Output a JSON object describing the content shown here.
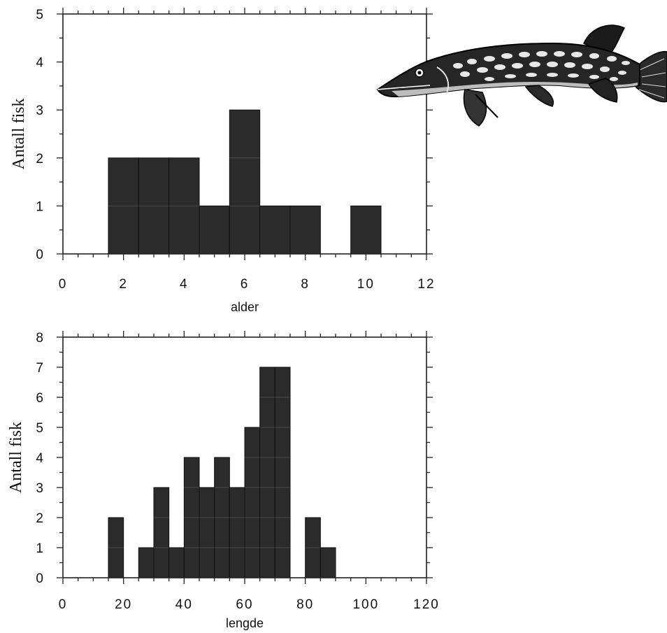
{
  "chart_data": [
    {
      "type": "bar",
      "xlabel": "alder",
      "ylabel": "Antall fisk",
      "xlim": [
        0,
        12
      ],
      "ylim": [
        0,
        5
      ],
      "bin_width": 1,
      "bins": [
        {
          "center": 2,
          "value": 2
        },
        {
          "center": 3,
          "value": 2
        },
        {
          "center": 4,
          "value": 2
        },
        {
          "center": 5,
          "value": 1
        },
        {
          "center": 6,
          "value": 3
        },
        {
          "center": 7,
          "value": 1
        },
        {
          "center": 8,
          "value": 1
        },
        {
          "center": 10,
          "value": 1
        }
      ],
      "x_ticks": [
        0,
        2,
        4,
        6,
        8,
        10,
        12
      ],
      "y_ticks": [
        0,
        1,
        2,
        3,
        4,
        5
      ],
      "grid": false
    },
    {
      "type": "bar",
      "xlabel": "lengde",
      "ylabel": "Antall fisk",
      "xlim": [
        0,
        120
      ],
      "ylim": [
        0,
        8
      ],
      "bin_width": 5,
      "bins": [
        {
          "center": 17.5,
          "value": 2
        },
        {
          "center": 27.5,
          "value": 1
        },
        {
          "center": 32.5,
          "value": 3
        },
        {
          "center": 37.5,
          "value": 1
        },
        {
          "center": 42.5,
          "value": 4
        },
        {
          "center": 47.5,
          "value": 3
        },
        {
          "center": 52.5,
          "value": 4
        },
        {
          "center": 57.5,
          "value": 3
        },
        {
          "center": 62.5,
          "value": 5
        },
        {
          "center": 67.5,
          "value": 7
        },
        {
          "center": 72.5,
          "value": 7
        },
        {
          "center": 82.5,
          "value": 2
        },
        {
          "center": 87.5,
          "value": 1
        }
      ],
      "x_ticks": [
        0,
        20,
        40,
        60,
        80,
        100,
        120
      ],
      "y_ticks": [
        0,
        1,
        2,
        3,
        4,
        5,
        6,
        7,
        8
      ],
      "grid": false
    }
  ],
  "decoration": {
    "illustration_icon": "pike-fish-icon"
  }
}
